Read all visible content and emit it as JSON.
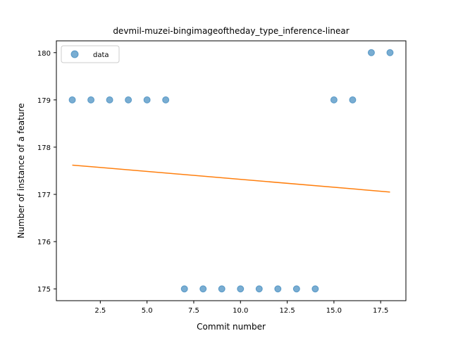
{
  "chart_data": {
    "type": "scatter",
    "title": "devmil-muzei-bingimageoftheday_type_inference-linear",
    "xlabel": "Commit number",
    "ylabel": "Number of instance of a feature",
    "xlim": [
      0.15,
      18.85
    ],
    "ylim": [
      174.75,
      180.25
    ],
    "xticks": [
      2.5,
      5.0,
      7.5,
      10.0,
      12.5,
      15.0,
      17.5
    ],
    "xtick_labels": [
      "2.5",
      "5.0",
      "7.5",
      "10.0",
      "12.5",
      "15.0",
      "17.5"
    ],
    "yticks": [
      175,
      176,
      177,
      178,
      179,
      180
    ],
    "ytick_labels": [
      "175",
      "176",
      "177",
      "178",
      "179",
      "180"
    ],
    "grid": false,
    "legend": {
      "position": "top-left",
      "entries": [
        "data"
      ]
    },
    "series": [
      {
        "name": "data",
        "kind": "scatter",
        "color": "#1f77b4",
        "x": [
          1,
          2,
          3,
          4,
          5,
          6,
          7,
          8,
          9,
          10,
          11,
          12,
          13,
          14,
          15,
          16,
          17,
          18
        ],
        "y": [
          179,
          179,
          179,
          179,
          179,
          179,
          175,
          175,
          175,
          175,
          175,
          175,
          175,
          175,
          179,
          179,
          180,
          180
        ]
      },
      {
        "kind": "line",
        "color": "#ff7f0e",
        "x": [
          1,
          18
        ],
        "y": [
          177.62,
          177.05
        ]
      }
    ]
  }
}
